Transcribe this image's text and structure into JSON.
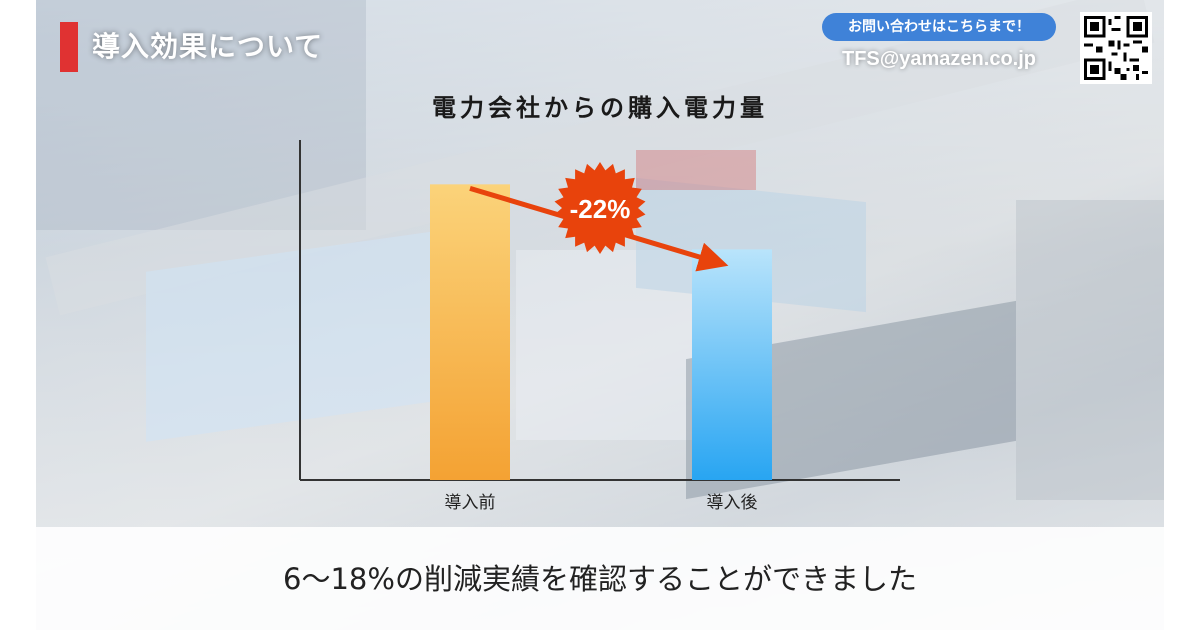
{
  "header": {
    "title": "導入効果について",
    "contact_label": "お問い合わせはこちらまで！",
    "email": "TFS@yamazen.co.jp",
    "qr_icon": "qr-code-icon"
  },
  "chart_data": {
    "type": "bar",
    "title": "電力会社からの購入電力量",
    "categories": [
      "導入前",
      "導入後"
    ],
    "values": [
      100,
      78
    ],
    "ylim": [
      0,
      115
    ],
    "xlabel": "",
    "ylabel": "",
    "grid": false,
    "show_y_ticks": false,
    "annotation": {
      "label": "-22%",
      "shape": "starburst",
      "arrow": "from bar 1 to bar 2"
    },
    "colors": {
      "bar_before_top": "#fbd37a",
      "bar_before_bottom": "#f4a233",
      "bar_after_top": "#b9e4fb",
      "bar_after_bottom": "#28a5f2",
      "arrow": "#e8430c",
      "badge": "#e8430c"
    }
  },
  "caption": "6〜18%の削減実績を確認することができました"
}
